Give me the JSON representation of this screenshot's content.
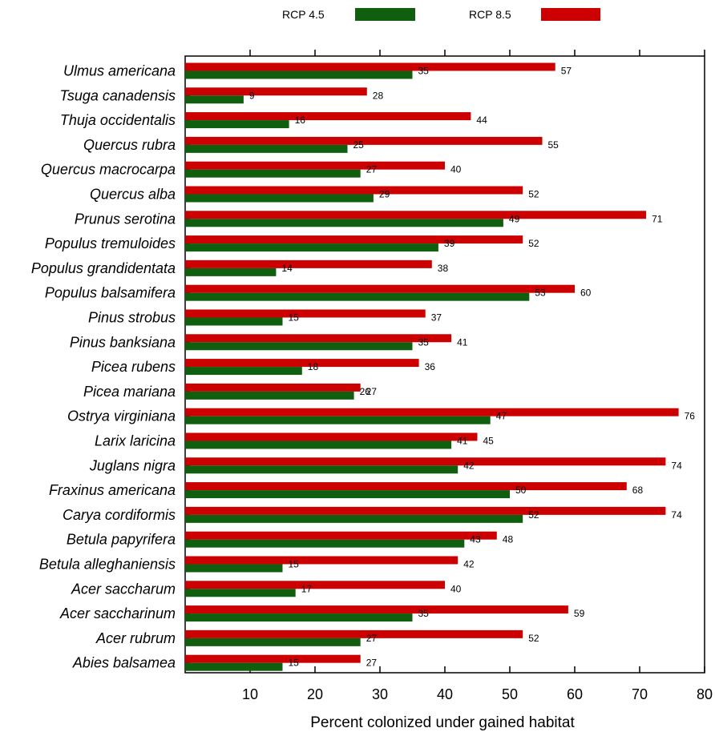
{
  "chart_data": {
    "type": "bar",
    "orientation": "horizontal",
    "xlabel": "Percent colonized under gained habitat",
    "ylabel": "",
    "xlim": [
      0,
      80
    ],
    "x_ticks": [
      10,
      20,
      30,
      40,
      50,
      60,
      70,
      80
    ],
    "grid": false,
    "legend_position": "top",
    "categories": [
      "Ulmus americana",
      "Tsuga canadensis",
      "Thuja occidentalis",
      "Quercus rubra",
      "Quercus macrocarpa",
      "Quercus alba",
      "Prunus serotina",
      "Populus tremuloides",
      "Populus grandidentata",
      "Populus balsamifera",
      "Pinus strobus",
      "Pinus banksiana",
      "Picea rubens",
      "Picea mariana",
      "Ostrya virginiana",
      "Larix laricina",
      "Juglans nigra",
      "Fraxinus americana",
      "Carya cordiformis",
      "Betula papyrifera",
      "Betula alleghaniensis",
      "Acer saccharum",
      "Acer saccharinum",
      "Acer rubrum",
      "Abies balsamea"
    ],
    "series": [
      {
        "name": "RCP 4.5",
        "color": "#0f5f0f",
        "values": [
          35,
          9,
          16,
          25,
          27,
          29,
          49,
          39,
          14,
          53,
          15,
          35,
          18,
          26,
          47,
          41,
          42,
          50,
          52,
          43,
          15,
          17,
          35,
          27,
          15
        ]
      },
      {
        "name": "RCP 8.5",
        "color": "#cc0000",
        "values": [
          57,
          28,
          44,
          55,
          40,
          52,
          71,
          52,
          38,
          60,
          37,
          41,
          36,
          27,
          76,
          45,
          74,
          68,
          74,
          48,
          42,
          40,
          59,
          52,
          27
        ]
      }
    ]
  }
}
